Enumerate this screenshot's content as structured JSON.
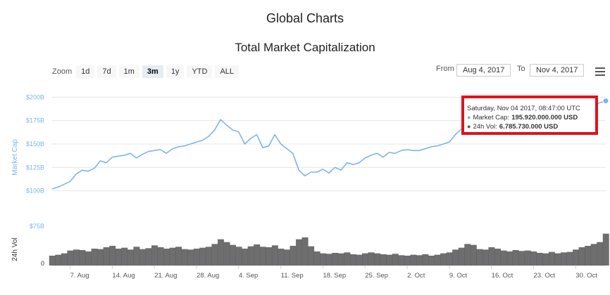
{
  "page": {
    "title": "Global Charts",
    "subtitle": "Total Market Capitalization"
  },
  "controls": {
    "zoom_label": "Zoom",
    "zoom_options": [
      "1d",
      "7d",
      "1m",
      "3m",
      "1y",
      "YTD",
      "ALL"
    ],
    "zoom_active": "3m",
    "from_label": "From",
    "from_value": "Aug 4, 2017",
    "to_label": "To",
    "to_value": "Nov 4, 2017",
    "menu_icon": "hamburger-menu-icon"
  },
  "tooltip": {
    "date": "Saturday, Nov 04 2017, 08:47:00 UTC",
    "cap_label": "Market Cap:",
    "cap_value": "195.920.000.000 USD",
    "vol_label": "24h Vol:",
    "vol_value": "6.785.730.000 USD",
    "highlight_color": "#e0121c"
  },
  "colors": {
    "cap_line": "#7cb5ec",
    "volume": "#555555",
    "cap_axis_text": "#7cb5ec"
  },
  "chart_data": {
    "type": "line",
    "title": "Total Market Capitalization",
    "xlabel": "",
    "ylabel": "Market Cap",
    "ylabel_volume": "24h Vol",
    "ylim": [
      75,
      210
    ],
    "y_ticks": [
      100,
      125,
      150,
      175,
      200
    ],
    "y_tick_labels": [
      "$100B",
      "$125B",
      "$150B",
      "$175B",
      "$200B"
    ],
    "volume_top_tick_label": "$75B",
    "volume_zero_label": "0",
    "x_tick_labels": [
      "7. Aug",
      "14. Aug",
      "21. Aug",
      "28. Aug",
      "4. Sep",
      "11. Sep",
      "18. Sep",
      "25. Sep",
      "2. Oct",
      "9. Oct",
      "16. Oct",
      "23. Oct",
      "30. Oct"
    ],
    "x_start": "2017-08-04",
    "x_end": "2017-11-04",
    "grid": true,
    "series": [
      {
        "name": "Market Cap",
        "unit": "USD billions",
        "x": [
          "2017-08-04",
          "2017-08-05",
          "2017-08-06",
          "2017-08-07",
          "2017-08-08",
          "2017-08-09",
          "2017-08-10",
          "2017-08-11",
          "2017-08-12",
          "2017-08-13",
          "2017-08-14",
          "2017-08-15",
          "2017-08-16",
          "2017-08-17",
          "2017-08-18",
          "2017-08-19",
          "2017-08-20",
          "2017-08-21",
          "2017-08-22",
          "2017-08-23",
          "2017-08-24",
          "2017-08-25",
          "2017-08-26",
          "2017-08-27",
          "2017-08-28",
          "2017-08-29",
          "2017-08-30",
          "2017-08-31",
          "2017-09-01",
          "2017-09-02",
          "2017-09-03",
          "2017-09-04",
          "2017-09-05",
          "2017-09-06",
          "2017-09-07",
          "2017-09-08",
          "2017-09-09",
          "2017-09-10",
          "2017-09-11",
          "2017-09-12",
          "2017-09-13",
          "2017-09-14",
          "2017-09-15",
          "2017-09-16",
          "2017-09-17",
          "2017-09-18",
          "2017-09-19",
          "2017-09-20",
          "2017-09-21",
          "2017-09-22",
          "2017-09-23",
          "2017-09-24",
          "2017-09-25",
          "2017-09-26",
          "2017-09-27",
          "2017-09-28",
          "2017-09-29",
          "2017-09-30",
          "2017-10-01",
          "2017-10-02",
          "2017-10-03",
          "2017-10-04",
          "2017-10-05",
          "2017-10-06",
          "2017-10-07",
          "2017-10-08",
          "2017-10-09",
          "2017-10-10",
          "2017-10-11",
          "2017-10-12",
          "2017-10-13",
          "2017-10-14",
          "2017-10-15",
          "2017-10-16",
          "2017-10-17",
          "2017-10-18",
          "2017-10-19",
          "2017-10-20",
          "2017-10-21",
          "2017-10-22",
          "2017-10-23",
          "2017-10-24",
          "2017-10-25",
          "2017-10-26",
          "2017-10-27",
          "2017-10-28",
          "2017-10-29",
          "2017-10-30",
          "2017-10-31",
          "2017-11-01",
          "2017-11-02",
          "2017-11-03",
          "2017-11-04"
        ],
        "values": [
          102,
          104,
          107,
          110,
          118,
          122,
          121,
          124,
          132,
          130,
          136,
          137,
          138,
          140,
          135,
          139,
          142,
          143,
          144,
          140,
          145,
          147,
          148,
          150,
          152,
          154,
          158,
          165,
          176,
          170,
          165,
          163,
          150,
          156,
          160,
          146,
          148,
          160,
          150,
          145,
          140,
          122,
          116,
          120,
          120,
          123,
          119,
          125,
          122,
          130,
          128,
          130,
          135,
          138,
          140,
          136,
          141,
          140,
          143,
          144,
          143,
          143,
          145,
          147,
          148,
          150,
          152,
          160,
          166,
          172,
          175,
          168,
          174,
          172,
          168,
          178,
          175,
          170,
          172,
          170,
          167,
          169,
          171,
          170,
          172,
          175,
          174,
          178,
          183,
          186,
          191,
          194,
          196
        ]
      },
      {
        "name": "24h Vol",
        "unit": "USD billions",
        "values": [
          2.1,
          2.3,
          2.6,
          3.2,
          3.4,
          3.3,
          3.0,
          3.6,
          3.5,
          3.9,
          4.2,
          3.6,
          3.8,
          3.4,
          4.0,
          3.5,
          3.7,
          4.3,
          3.9,
          3.6,
          3.8,
          4.0,
          3.5,
          3.4,
          3.6,
          3.8,
          4.0,
          4.6,
          5.6,
          5.0,
          4.4,
          4.0,
          3.6,
          4.1,
          4.5,
          4.0,
          3.9,
          4.3,
          3.6,
          3.4,
          4.2,
          5.6,
          6.0,
          4.1,
          3.0,
          2.6,
          2.5,
          2.7,
          2.6,
          2.8,
          2.4,
          2.3,
          2.6,
          2.8,
          2.6,
          2.4,
          2.3,
          2.5,
          2.2,
          2.1,
          2.3,
          2.2,
          2.4,
          2.1,
          2.3,
          2.6,
          2.8,
          3.4,
          3.8,
          4.6,
          4.4,
          3.5,
          3.4,
          3.9,
          3.6,
          3.2,
          3.0,
          3.3,
          3.1,
          3.2,
          3.0,
          2.7,
          2.6,
          2.9,
          2.6,
          2.8,
          2.9,
          3.4,
          3.9,
          4.2,
          4.6,
          5.0,
          6.8
        ]
      }
    ]
  }
}
